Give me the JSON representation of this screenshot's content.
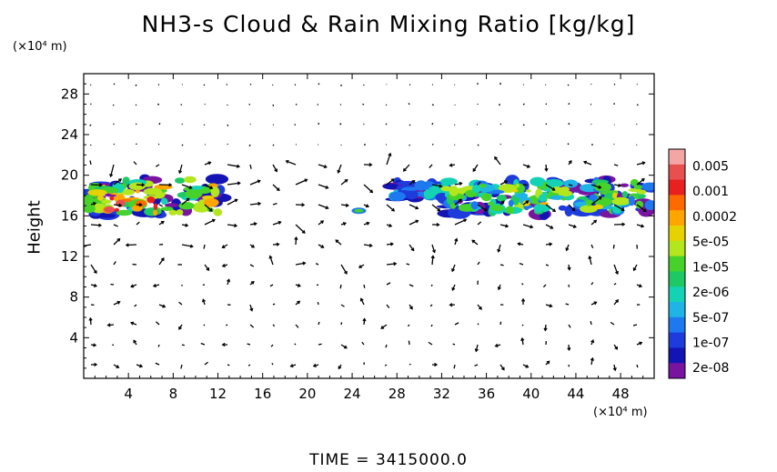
{
  "chart_data": {
    "type": "heatmap",
    "title": "NH3-s Cloud & Rain Mixing Ratio [kg/kg]",
    "xlabel_unit": "(×10⁴ m)",
    "ylabel": "Height",
    "ylabel_unit": "(×10⁴ m)",
    "xlim": [
      0,
      51
    ],
    "ylim": [
      0,
      30
    ],
    "x_ticks": [
      4,
      8,
      12,
      16,
      20,
      24,
      28,
      32,
      36,
      40,
      44,
      48
    ],
    "y_ticks": [
      4,
      8,
      12,
      16,
      20,
      24,
      28
    ],
    "colorbar": {
      "labels": [
        "0.005",
        "0.001",
        "0.0002",
        "5e-05",
        "1e-05",
        "2e-06",
        "5e-07",
        "1e-07",
        "2e-08"
      ],
      "colors": [
        "#f4a6a6",
        "#e85050",
        "#e82020",
        "#ff6a00",
        "#ffa500",
        "#e6d200",
        "#b4e61e",
        "#46d22a",
        "#1ec864",
        "#14d2b4",
        "#1eb4e6",
        "#1e78f0",
        "#1e3cdc",
        "#1414b4",
        "#7814a0"
      ]
    },
    "cloud_regions": [
      {
        "x": [
          0,
          12.5
        ],
        "y": [
          16,
          20
        ],
        "peak": "0.001"
      },
      {
        "x": [
          24,
          25.5
        ],
        "y": [
          16.2,
          16.9
        ],
        "peak": "5e-07"
      },
      {
        "x": [
          27,
          51
        ],
        "y": [
          16,
          19.5
        ],
        "peak": "0.0002"
      }
    ],
    "vectors": "wind vectors overlaid on grid"
  },
  "footer": {
    "time": "TIME = 3415000.0"
  }
}
